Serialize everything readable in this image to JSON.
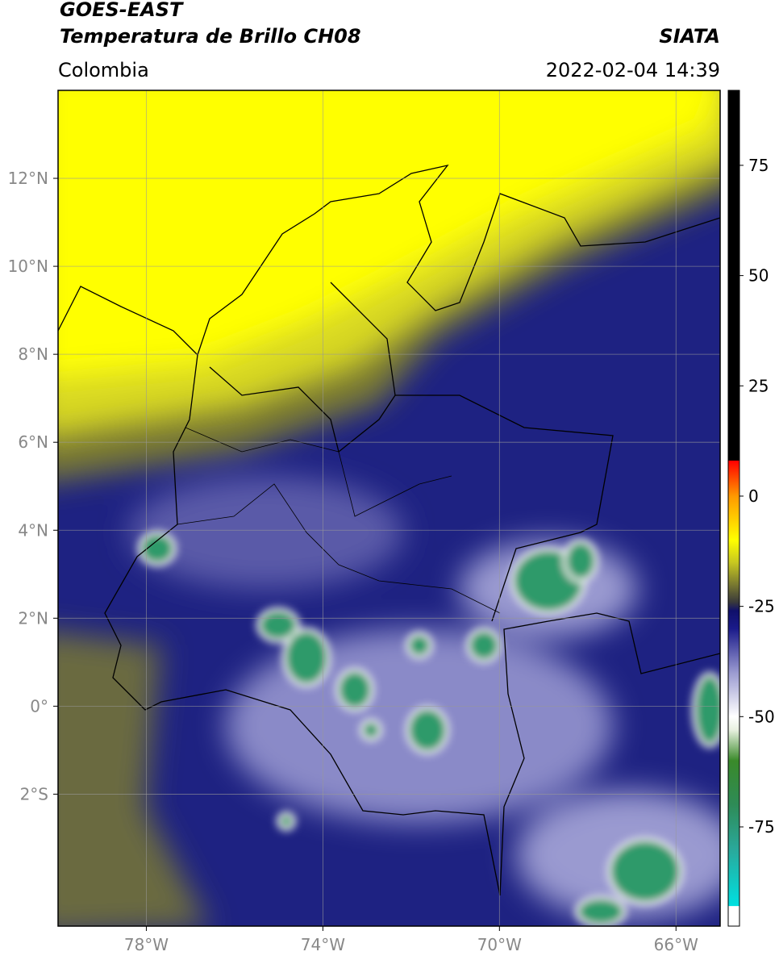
{
  "header": {
    "title_line1": "GOES-EAST",
    "title_line2": "Temperatura de Brillo CH08",
    "source": "SIATA",
    "region": "Colombia",
    "timestamp": "2022-02-04 14:39"
  },
  "map": {
    "lon_range": [
      -80,
      -65
    ],
    "lat_range": [
      -5,
      14
    ],
    "lon_ticks": [
      {
        "value": -78,
        "label": "78°W"
      },
      {
        "value": -74,
        "label": "74°W"
      },
      {
        "value": -70,
        "label": "70°W"
      },
      {
        "value": -66,
        "label": "66°W"
      }
    ],
    "lat_ticks": [
      {
        "value": 12,
        "label": "12°N"
      },
      {
        "value": 10,
        "label": "10°N"
      },
      {
        "value": 8,
        "label": "8°N"
      },
      {
        "value": 6,
        "label": "6°N"
      },
      {
        "value": 4,
        "label": "4°N"
      },
      {
        "value": 2,
        "label": "2°N"
      },
      {
        "value": 0,
        "label": "0°"
      },
      {
        "value": -2,
        "label": "2°S"
      }
    ]
  },
  "colorbar": {
    "range": [
      -97.5,
      92
    ],
    "ticks": [
      75,
      50,
      25,
      0,
      -25,
      -50,
      -75
    ],
    "colormap": [
      {
        "value": 92,
        "color": "#000000"
      },
      {
        "value": 8.1,
        "color": "#000000"
      },
      {
        "value": 8,
        "color": "#ff0000"
      },
      {
        "value": 0,
        "color": "#ff9900"
      },
      {
        "value": -10,
        "color": "#ffff00"
      },
      {
        "value": -15,
        "color": "#c8c820"
      },
      {
        "value": -20,
        "color": "#7a7a30"
      },
      {
        "value": -24,
        "color": "#3a3a3a"
      },
      {
        "value": -26,
        "color": "#10106a"
      },
      {
        "value": -30,
        "color": "#1a1a8a"
      },
      {
        "value": -40,
        "color": "#9a9ad0"
      },
      {
        "value": -50,
        "color": "#ffffff"
      },
      {
        "value": -53,
        "color": "#e8f0e0"
      },
      {
        "value": -60,
        "color": "#3a8a2a"
      },
      {
        "value": -70,
        "color": "#2e8b57"
      },
      {
        "value": -80,
        "color": "#2aa89a"
      },
      {
        "value": -92.9,
        "color": "#00e0e0"
      },
      {
        "value": -93,
        "color": "#ffffff"
      },
      {
        "value": -97.5,
        "color": "#ffffff"
      }
    ]
  }
}
